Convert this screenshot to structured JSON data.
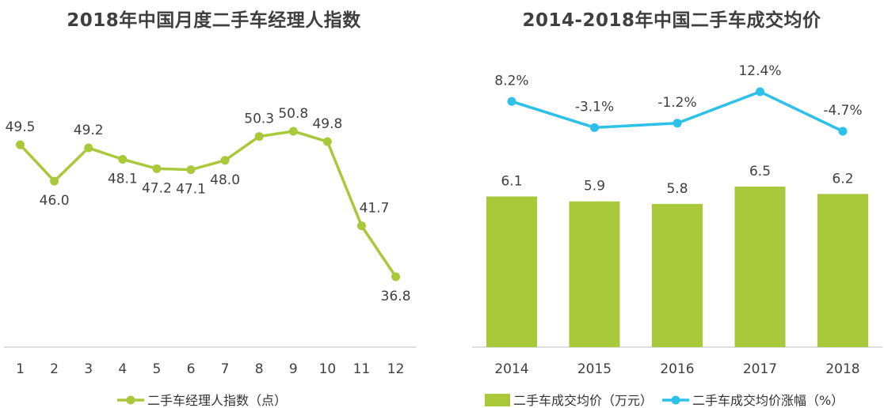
{
  "chart_data": [
    {
      "type": "line",
      "title": "2018年中国月度二手车经理人指数",
      "categories": [
        "1",
        "2",
        "3",
        "4",
        "5",
        "6",
        "7",
        "8",
        "9",
        "10",
        "11",
        "12"
      ],
      "series": [
        {
          "name": "二手车经理人指数（点）",
          "values": [
            49.5,
            46.0,
            49.2,
            48.1,
            47.2,
            47.1,
            48.0,
            50.3,
            50.8,
            49.8,
            41.7,
            36.8
          ],
          "color": "#a9c83a"
        }
      ],
      "value_labels": [
        "49.5",
        "46.0",
        "49.2",
        "48.1",
        "47.2",
        "47.1",
        "48.0",
        "50.3",
        "50.8",
        "49.8",
        "41.7",
        "36.8"
      ],
      "legend": "bottom",
      "ylim": [
        20,
        56
      ]
    },
    {
      "type": "bar+line",
      "title": "2014-2018年中国二手车成交均价",
      "categories": [
        "2014",
        "2015",
        "2016",
        "2017",
        "2018"
      ],
      "series": [
        {
          "name": "二手车成交均价（万元）",
          "type": "bar",
          "values": [
            6.1,
            5.9,
            5.8,
            6.5,
            6.2
          ],
          "labels": [
            "6.1",
            "5.9",
            "5.8",
            "6.5",
            "6.2"
          ],
          "color": "#a9c83a"
        },
        {
          "name": "二手车成交均价涨幅（%）",
          "type": "line",
          "values": [
            8.2,
            -3.1,
            -1.2,
            12.4,
            -4.7
          ],
          "labels": [
            "8.2%",
            "-3.1%",
            "-1.2%",
            "12.4%",
            "-4.7%"
          ],
          "color": "#2dc0e8"
        }
      ],
      "bar_ylim": [
        0,
        6.5
      ],
      "line_ylim": [
        -4.7,
        12.4
      ],
      "legend": "bottom"
    }
  ]
}
